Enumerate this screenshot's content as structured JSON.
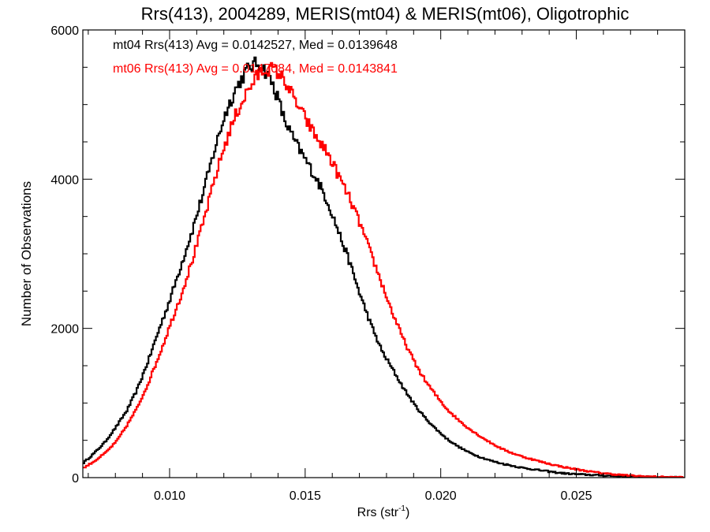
{
  "chart_data": {
    "type": "line",
    "title": "Rrs(413), 2004289, MERIS(mt04) & MERIS(mt06), Oligotrophic",
    "xlabel": "Rrs (str",
    "xlabel_sup": "-1",
    "xlabel_end": ")",
    "ylabel": "Number of Observations",
    "xlim": [
      0.0068,
      0.029
    ],
    "ylim": [
      0,
      6000
    ],
    "x_ticks": [
      0.01,
      0.015,
      0.02,
      0.025
    ],
    "x_tick_labels": [
      "0.010",
      "0.015",
      "0.020",
      "0.025"
    ],
    "y_ticks": [
      0,
      2000,
      4000,
      6000
    ],
    "y_tick_labels": [
      "0",
      "2000",
      "4000",
      "6000"
    ],
    "grid": false,
    "step": true,
    "annotations": [
      {
        "text": "mt04 Rrs(413) Avg = 0.0142527, Med = 0.0139648",
        "color": "#000000"
      },
      {
        "text": "mt06 Rrs(413) Avg = 0.0147084, Med = 0.0143841",
        "color": "#ff0000"
      }
    ],
    "series": [
      {
        "color": "#000000",
        "x": [
          0.0068,
          0.0072,
          0.0076,
          0.008,
          0.0084,
          0.0088,
          0.0092,
          0.0096,
          0.01,
          0.0104,
          0.0108,
          0.0112,
          0.0116,
          0.012,
          0.0124,
          0.0128,
          0.013,
          0.0132,
          0.0134,
          0.0136,
          0.0138,
          0.014,
          0.0142,
          0.0146,
          0.015,
          0.0154,
          0.0158,
          0.0162,
          0.0166,
          0.017,
          0.0174,
          0.0178,
          0.0182,
          0.0186,
          0.019,
          0.0194,
          0.0198,
          0.0202,
          0.0206,
          0.021,
          0.0214,
          0.0218,
          0.0222,
          0.0226,
          0.023,
          0.0234,
          0.0238,
          0.0242,
          0.0246,
          0.025,
          0.0256,
          0.0262,
          0.0268,
          0.0274,
          0.028,
          0.0286,
          0.029
        ],
        "y": [
          200,
          330,
          480,
          680,
          900,
          1200,
          1580,
          2000,
          2400,
          2850,
          3300,
          3800,
          4350,
          4850,
          5200,
          5450,
          5520,
          5550,
          5500,
          5400,
          5250,
          5050,
          4800,
          4500,
          4250,
          4000,
          3700,
          3300,
          2900,
          2450,
          2050,
          1700,
          1450,
          1200,
          980,
          800,
          650,
          520,
          420,
          340,
          280,
          230,
          190,
          160,
          130,
          110,
          90,
          70,
          55,
          45,
          35,
          25,
          15,
          10,
          6,
          3,
          2
        ]
      },
      {
        "color": "#ff0000",
        "x": [
          0.0068,
          0.0072,
          0.0076,
          0.008,
          0.0084,
          0.0088,
          0.0092,
          0.0096,
          0.01,
          0.0104,
          0.0108,
          0.0112,
          0.0116,
          0.012,
          0.0124,
          0.0128,
          0.0132,
          0.0134,
          0.0136,
          0.0138,
          0.014,
          0.0142,
          0.0144,
          0.0146,
          0.015,
          0.0154,
          0.0158,
          0.0162,
          0.0166,
          0.017,
          0.0174,
          0.0178,
          0.0182,
          0.0186,
          0.019,
          0.0194,
          0.0198,
          0.0202,
          0.0206,
          0.021,
          0.0214,
          0.0218,
          0.0222,
          0.0226,
          0.023,
          0.0234,
          0.0238,
          0.0242,
          0.0246,
          0.025,
          0.0256,
          0.0262,
          0.0268,
          0.0274,
          0.028,
          0.0286,
          0.029
        ],
        "y": [
          130,
          220,
          330,
          480,
          700,
          950,
          1280,
          1650,
          2050,
          2450,
          2900,
          3400,
          3950,
          4450,
          4850,
          5150,
          5380,
          5450,
          5480,
          5470,
          5420,
          5330,
          5200,
          5050,
          4800,
          4550,
          4350,
          4050,
          3750,
          3400,
          3000,
          2600,
          2200,
          1850,
          1550,
          1300,
          1100,
          920,
          780,
          660,
          560,
          470,
          390,
          330,
          280,
          240,
          200,
          165,
          135,
          110,
          75,
          50,
          30,
          18,
          10,
          5,
          3
        ]
      }
    ]
  }
}
